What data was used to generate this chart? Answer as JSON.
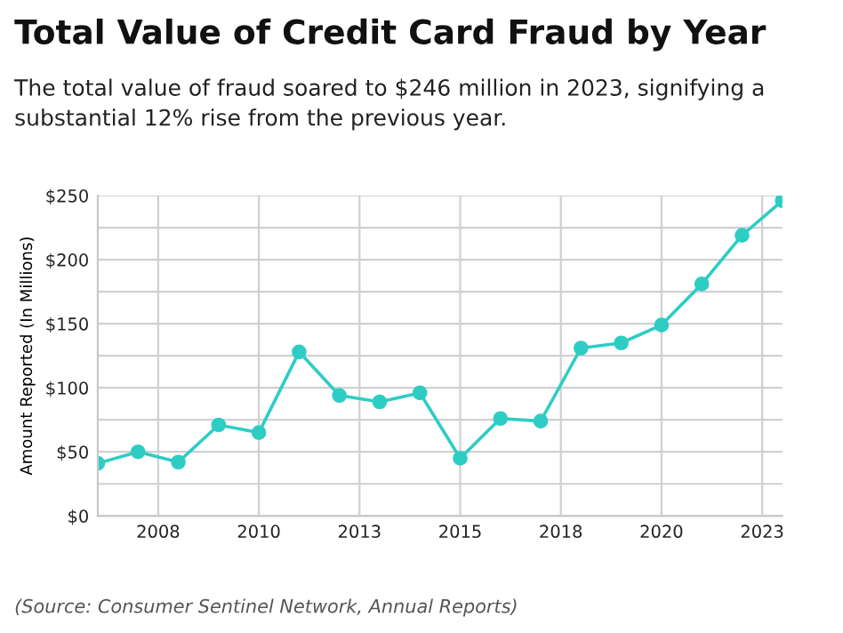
{
  "chart_data": {
    "type": "line",
    "title": "Total Value of Credit Card Fraud by Year",
    "subtitle": "The total value of fraud soared to $246 million in 2023, signifying a substantial 12% rise from the previous year.",
    "ylabel": "Amount Reported (In Millions)",
    "x": [
      2006,
      2007,
      2008,
      2009,
      2010,
      2011,
      2012,
      2013,
      2014,
      2015,
      2016,
      2017,
      2018,
      2019,
      2020,
      2021,
      2022,
      2023
    ],
    "series": [
      {
        "color": "#2ecdc4",
        "values": [
          41,
          50,
          42,
          71,
          65,
          128,
          94,
          89,
          96,
          45,
          76,
          74,
          131,
          135,
          149,
          181,
          219,
          246
        ]
      }
    ],
    "xlim": [
      2006,
      2023
    ],
    "xticks": [
      {
        "value": 2007.5,
        "label": "2008"
      },
      {
        "value": 2010,
        "label": "2010"
      },
      {
        "value": 2012.5,
        "label": "2013"
      },
      {
        "value": 2015,
        "label": "2015"
      },
      {
        "value": 2017.5,
        "label": "2018"
      },
      {
        "value": 2020,
        "label": "2020"
      },
      {
        "value": 2022.5,
        "label": "2023"
      }
    ],
    "ylim": [
      0,
      250
    ],
    "yticks": [
      {
        "value": 0,
        "label": "$0"
      },
      {
        "value": 25,
        "label": null
      },
      {
        "value": 50,
        "label": "$50"
      },
      {
        "value": 75,
        "label": null
      },
      {
        "value": 100,
        "label": "$100"
      },
      {
        "value": 125,
        "label": null
      },
      {
        "value": 150,
        "label": "$150"
      },
      {
        "value": 175,
        "label": null
      },
      {
        "value": 200,
        "label": "$200"
      },
      {
        "value": 225,
        "label": null
      },
      {
        "value": 250,
        "label": "$250"
      }
    ],
    "grid": true,
    "marker": "circle",
    "line_style": "solid",
    "legend": false,
    "annotations": [
      "(Source: Consumer Sentinel Network, Annual Reports)"
    ]
  }
}
